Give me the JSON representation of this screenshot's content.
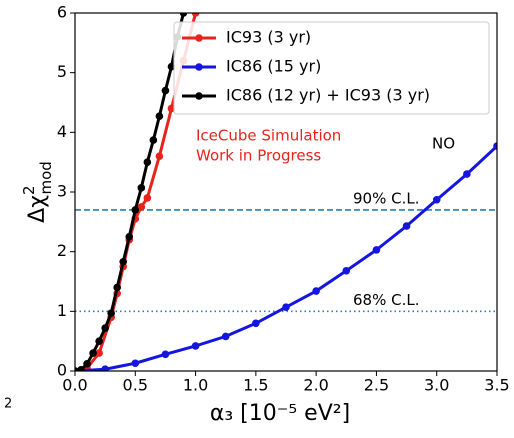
{
  "chart_data": {
    "type": "line",
    "y_label": {
      "base": "Δχ",
      "sup": "2",
      "sub": "mod"
    },
    "x_label": "α₃ [10⁻⁵ eV²]",
    "xlim": [
      0,
      3.5
    ],
    "xticks": [
      {
        "value": 0,
        "label": "0.0"
      },
      {
        "value": 0.5,
        "label": "0.5"
      },
      {
        "value": 1,
        "label": "1.0"
      },
      {
        "value": 1.5,
        "label": "1.5"
      },
      {
        "value": 2,
        "label": "2.0"
      },
      {
        "value": 2.5,
        "label": "2.5"
      },
      {
        "value": 3,
        "label": "3.0"
      },
      {
        "value": 3.5,
        "label": "3.5"
      }
    ],
    "ylim": [
      0,
      6
    ],
    "yticks": [
      0,
      1,
      2,
      3,
      4,
      5,
      6
    ],
    "legend": "upper right",
    "series": [
      {
        "name": "IC93 (3 yr)",
        "color": "#e8231c",
        "x": [
          0,
          0.1,
          0.2,
          0.3,
          0.35,
          0.4,
          0.45,
          0.5,
          0.55,
          0.6,
          0.7,
          0.8,
          0.9,
          1.0
        ],
        "values": [
          0,
          0.05,
          0.3,
          0.9,
          1.3,
          1.75,
          2.2,
          2.55,
          2.75,
          2.9,
          3.6,
          4.4,
          5.2,
          6.0
        ]
      },
      {
        "name": "IC86 (15 yr)",
        "color": "#1515e0",
        "x": [
          0,
          0.25,
          0.5,
          0.75,
          1.0,
          1.25,
          1.5,
          1.75,
          2.0,
          2.25,
          2.5,
          2.75,
          3.0,
          3.25,
          3.5
        ],
        "values": [
          0,
          0.03,
          0.13,
          0.28,
          0.42,
          0.58,
          0.8,
          1.07,
          1.34,
          1.68,
          2.03,
          2.43,
          2.87,
          3.3,
          3.77
        ]
      },
      {
        "name": "IC86 (12 yr) + IC93 (3 yr)",
        "color": "#000000",
        "x": [
          0,
          0.05,
          0.1,
          0.15,
          0.2,
          0.25,
          0.3,
          0.35,
          0.4,
          0.45,
          0.5,
          0.55,
          0.6,
          0.65,
          0.7,
          0.75,
          0.8,
          0.85,
          0.9
        ],
        "values": [
          0,
          0.02,
          0.12,
          0.3,
          0.5,
          0.72,
          0.97,
          1.4,
          1.83,
          2.25,
          2.7,
          3.07,
          3.5,
          3.87,
          4.27,
          4.7,
          5.1,
          5.6,
          6.0
        ]
      }
    ],
    "hlines": [
      {
        "value": 2.7,
        "label": "90% C.L.",
        "style": "dashed",
        "color": "#2a7fb0"
      },
      {
        "value": 1,
        "label": "68% C.L.",
        "style": "dotted",
        "color": "#2a7fb0"
      }
    ],
    "annotations": [
      "IceCube Simulation",
      "Work in Progress",
      "NO"
    ],
    "stray_label": "2"
  }
}
